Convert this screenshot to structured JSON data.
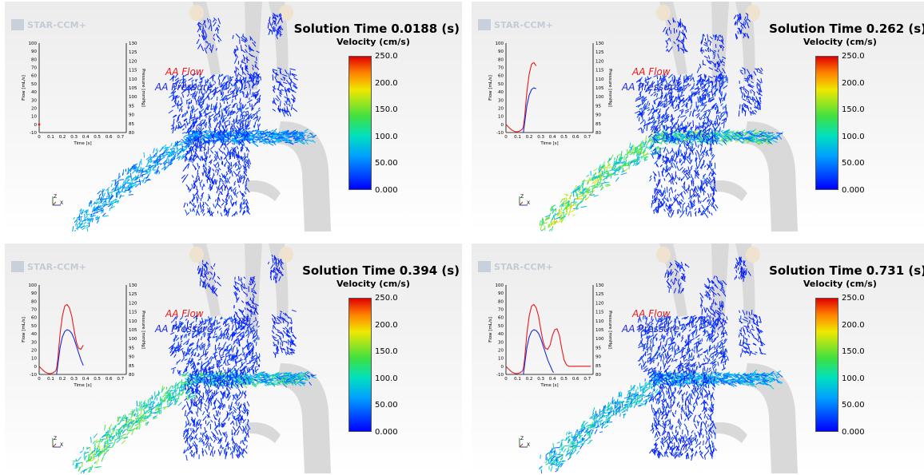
{
  "app": {
    "logo_text": "STAR-CCM+"
  },
  "colors": {
    "flow": "#e81818",
    "pressure": "#1a2bdc",
    "vector_dark": "#1528d8",
    "vector_light": "#4fb8e6"
  },
  "colorbar": {
    "label": "Velocity (cm/s)",
    "ticks": [
      "250.0",
      "200.0",
      "150.0",
      "100.0",
      "50.00",
      "0.000"
    ],
    "range": [
      0,
      250
    ],
    "colormap": "blue-cyan-green-yellow-red"
  },
  "chart": {
    "y_left_label": "Flow [mL/s]",
    "y_right_label": "Pressure [mmHg]",
    "x_label": "Time [s]",
    "y_left_ticks": [
      "100",
      "90",
      "80",
      "70",
      "60",
      "50",
      "40",
      "30",
      "20",
      "10",
      "0",
      "-10"
    ],
    "y_right_ticks": [
      "130",
      "125",
      "120",
      "115",
      "110",
      "105",
      "100",
      "95",
      "90",
      "85",
      "80"
    ],
    "x_ticks": [
      "0",
      "0.1",
      "0.2",
      "0.3",
      "0.4",
      "0.5",
      "0.6",
      "0.7"
    ],
    "legend_flow": "AA Flow",
    "legend_pressure": "AA Pressure"
  },
  "triad": {
    "z": "Z",
    "x": "X"
  },
  "panels": [
    {
      "title_prefix": "Solution Time",
      "time": "0.0188 (s)",
      "t": 0.0188
    },
    {
      "title_prefix": "Solution Time",
      "time": "0.262 (s)",
      "t": 0.262
    },
    {
      "title_prefix": "Solution Time",
      "time": "0.394 (s)",
      "t": 0.394
    },
    {
      "title_prefix": "Solution Time",
      "time": "0.731 (s)",
      "t": 0.731
    }
  ],
  "chart_data": {
    "type": "line",
    "xlabel": "Time [s]",
    "ylabel": "Flow [mL/s]",
    "y2label": "Pressure [mmHg]",
    "xlim": [
      0,
      0.75
    ],
    "ylim": [
      -10,
      100
    ],
    "y2lim": [
      80,
      130
    ],
    "series": [
      {
        "name": "AA Flow",
        "axis": "left",
        "x": [
          0.0,
          0.02,
          0.05,
          0.08,
          0.1,
          0.12,
          0.14,
          0.15,
          0.16,
          0.18,
          0.2,
          0.22,
          0.24,
          0.26,
          0.28,
          0.3,
          0.32,
          0.34,
          0.36,
          0.38,
          0.4,
          0.42,
          0.44,
          0.46,
          0.48,
          0.5,
          0.52,
          0.54,
          0.56,
          0.6,
          0.65,
          0.7,
          0.73
        ],
        "y": [
          0,
          -3,
          -7,
          -9,
          -9,
          -8,
          -6,
          -3,
          8,
          40,
          62,
          74,
          76,
          72,
          62,
          45,
          30,
          22,
          21,
          26,
          38,
          45,
          46,
          38,
          22,
          8,
          2,
          0,
          0,
          0,
          0,
          0,
          0
        ]
      },
      {
        "name": "AA Pressure",
        "axis": "right",
        "x": [
          0.15,
          0.16,
          0.18,
          0.2,
          0.22,
          0.24,
          0.26,
          0.28,
          0.3,
          0.32,
          0.34,
          0.36,
          0.38,
          0.4,
          0.41
        ],
        "y": [
          80,
          85,
          95,
          101,
          104,
          105,
          104.5,
          103,
          100,
          96,
          92,
          88,
          85,
          82,
          81
        ]
      }
    ]
  }
}
